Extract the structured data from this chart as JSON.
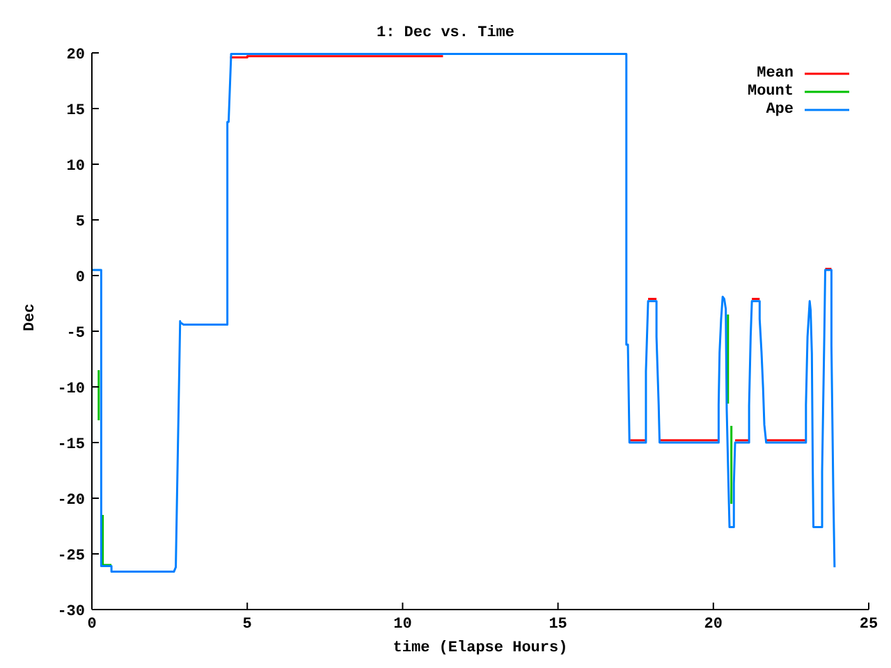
{
  "chart_data": {
    "type": "line",
    "title": "1: Dec vs. Time",
    "xlabel": "time (Elapse Hours)",
    "ylabel": "Dec",
    "xlim": [
      0,
      25
    ],
    "xticks": [
      0,
      5,
      10,
      15,
      20,
      25
    ],
    "ylim": [
      -30,
      20
    ],
    "yticks": [
      -30,
      -25,
      -20,
      -15,
      -10,
      -5,
      0,
      5,
      10,
      15,
      20
    ],
    "legend": "top right",
    "marker": "none",
    "line_style": "solid",
    "series": [
      {
        "name": "Mean",
        "color": "#ff0000",
        "x": [
          4.45,
          5.0,
          5.0,
          11.3
        ],
        "values": [
          19.6,
          19.6,
          19.7,
          19.7
        ]
      },
      {
        "color": "#ff0000",
        "x": [
          17.3,
          17.83
        ],
        "values": [
          -14.8,
          -14.8
        ]
      },
      {
        "color": "#ff0000",
        "x": [
          17.9,
          18.17
        ],
        "values": [
          -2.1,
          -2.1
        ]
      },
      {
        "color": "#ff0000",
        "x": [
          18.26,
          20.17
        ],
        "values": [
          -14.8,
          -14.8
        ]
      },
      {
        "color": "#ff0000",
        "x": [
          20.7,
          21.15
        ],
        "values": [
          -14.8,
          -14.8
        ]
      },
      {
        "color": "#ff0000",
        "x": [
          21.24,
          21.49
        ],
        "values": [
          -2.1,
          -2.1
        ]
      },
      {
        "color": "#ff0000",
        "x": [
          21.7,
          22.98
        ],
        "values": [
          -14.8,
          -14.8
        ]
      },
      {
        "color": "#ff0000",
        "x": [
          23.6,
          23.8
        ],
        "values": [
          0.6,
          0.6
        ]
      },
      {
        "name": "Mount",
        "color": "#00c000",
        "x": [
          0.22,
          0.22
        ],
        "values": [
          -8.5,
          -13
        ]
      },
      {
        "color": "#00c000",
        "x": [
          0.35,
          0.35,
          0.63
        ],
        "values": [
          -21.5,
          -26,
          -26
        ]
      },
      {
        "color": "#00c000",
        "x": [
          20.47,
          20.47
        ],
        "values": [
          -3.5,
          -11.5
        ]
      },
      {
        "color": "#00c000",
        "x": [
          20.58,
          20.58
        ],
        "values": [
          -13.5,
          -20.5
        ]
      },
      {
        "name": "Ape",
        "color": "#0080ff",
        "x": [
          0,
          0.3,
          0.3,
          0.63,
          0.63,
          2.64,
          2.7,
          2.7,
          2.84,
          2.84,
          2.95,
          4.36,
          4.36,
          4.4,
          4.48,
          4.48,
          17.2,
          17.2,
          17.25,
          17.3,
          17.83,
          17.83,
          17.9,
          18.17,
          18.17,
          18.24,
          18.27,
          20.17,
          20.17,
          20.2,
          20.25,
          20.3,
          20.35,
          20.4,
          20.43,
          20.48,
          20.48,
          20.52,
          20.66,
          20.66,
          20.7,
          21.15,
          21.15,
          21.2,
          21.24,
          21.49,
          21.49,
          21.55,
          21.6,
          21.64,
          21.7,
          22.98,
          22.98,
          23.03,
          23.1,
          23.13,
          23.17,
          23.2,
          23.22,
          23.5,
          23.5,
          23.57,
          23.6,
          23.8,
          23.8,
          23.86,
          23.9
        ],
        "values": [
          0.5,
          0.5,
          -26.1,
          -26.1,
          -26.6,
          -26.6,
          -26.2,
          -26.2,
          -4.1,
          -4.2,
          -4.4,
          -4.4,
          13.8,
          13.8,
          19.8,
          19.9,
          19.9,
          -6.2,
          -6.2,
          -15,
          -15,
          -8.6,
          -2.3,
          -2.3,
          -5.5,
          -11.6,
          -15,
          -15,
          -11.6,
          -6.9,
          -3.9,
          -1.9,
          -2.1,
          -3,
          -12,
          -18,
          -18.1,
          -22.6,
          -22.6,
          -18.7,
          -15,
          -15,
          -11.7,
          -5.5,
          -2.3,
          -2.3,
          -3.9,
          -6.9,
          -10.1,
          -13.4,
          -15,
          -15,
          -11.6,
          -5.5,
          -2.3,
          -3.1,
          -7,
          -17.6,
          -22.6,
          -22.6,
          -17.6,
          -5.5,
          0.5,
          0.5,
          -6.3,
          -19.5,
          -26.2
        ]
      }
    ]
  }
}
